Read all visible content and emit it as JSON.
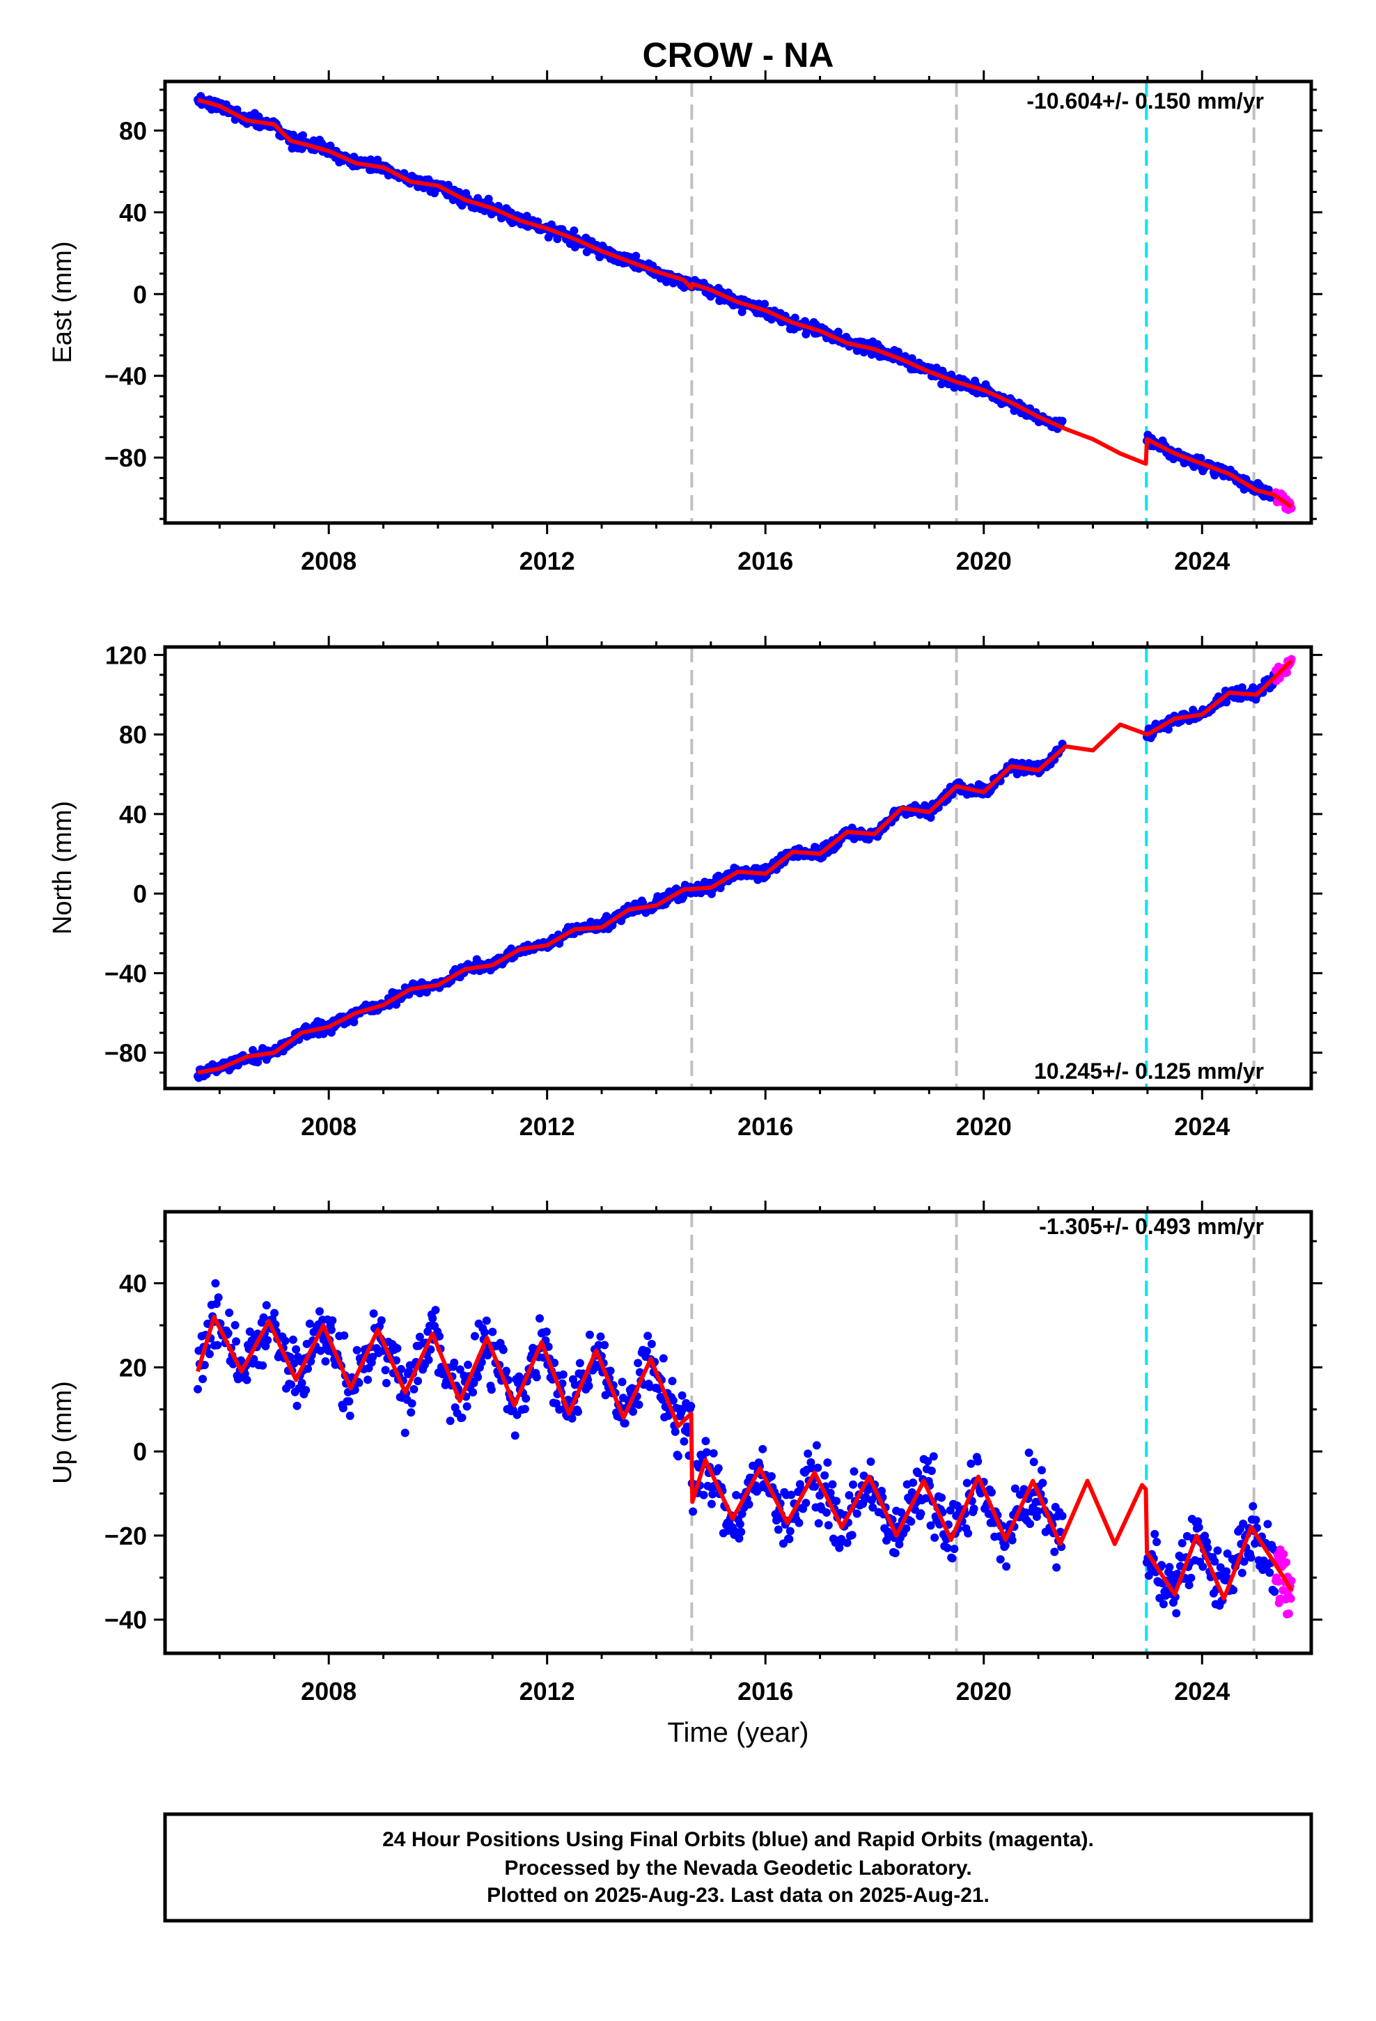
{
  "title": "CROW - NA",
  "colors": {
    "final_orbits": "#0000ff",
    "rapid_orbits": "#ff00ff",
    "model": "#ff0000",
    "equipment_change": "#c0c0c0",
    "earthquake": "#00e5ee"
  },
  "x_axis": {
    "label": "Time (year)",
    "range": [
      2005.0,
      2026.0
    ],
    "ticks": [
      2008,
      2012,
      2016,
      2020,
      2024
    ],
    "tick_labels": [
      "2008",
      "2012",
      "2016",
      "2020",
      "2024"
    ]
  },
  "markers": {
    "gray_dashed": [
      2014.65,
      2019.5,
      2024.95
    ],
    "cyan_dashed": [
      2022.98
    ]
  },
  "chart_data": [
    {
      "type": "scatter",
      "component": "east",
      "ylabel": "East (mm)",
      "ylim": [
        -112,
        104
      ],
      "yticks": [
        -80,
        -40,
        0,
        40,
        80
      ],
      "ytick_labels": [
        "−80",
        "−40",
        "0",
        "40",
        "80"
      ],
      "rate_text": "-10.604+/- 0.150 mm/yr",
      "rate_position": "top-right",
      "final_data_range": [
        2005.6,
        2025.35
      ],
      "rapid_data_range": [
        2025.35,
        2025.64
      ],
      "model": {
        "x": [
          2005.6,
          2006.0,
          2006.5,
          2007.0,
          2007.3,
          2007.6,
          2008.0,
          2008.5,
          2009.0,
          2009.5,
          2010.0,
          2010.5,
          2011.0,
          2011.5,
          2012.0,
          2012.5,
          2013.0,
          2013.5,
          2014.0,
          2014.5,
          2014.64,
          2014.66,
          2015.0,
          2015.5,
          2016.0,
          2016.5,
          2017.0,
          2017.5,
          2018.0,
          2018.5,
          2019.0,
          2019.5,
          2020.0,
          2020.5,
          2021.0,
          2021.5,
          2022.0,
          2022.5,
          2022.97,
          2022.99,
          2023.5,
          2024.0,
          2024.5,
          2025.0,
          2025.3,
          2025.64
        ],
        "y": [
          95,
          92,
          85,
          83,
          75,
          73,
          70,
          64,
          62,
          55,
          53,
          46,
          42,
          36,
          32,
          27,
          21,
          16,
          11,
          7,
          3,
          5,
          2,
          -4,
          -8,
          -14,
          -18,
          -24,
          -27,
          -32,
          -38,
          -43,
          -47,
          -53,
          -60,
          -66,
          -71,
          -78,
          -83,
          -71,
          -78,
          -83,
          -88,
          -96,
          -98,
          -104
        ]
      }
    },
    {
      "type": "scatter",
      "component": "north",
      "ylabel": "North (mm)",
      "ylim": [
        -98,
        124
      ],
      "yticks": [
        -80,
        -40,
        0,
        40,
        80,
        120
      ],
      "ytick_labels": [
        "−80",
        "−40",
        "0",
        "40",
        "80",
        "120"
      ],
      "rate_text": "10.245+/- 0.125 mm/yr",
      "rate_position": "bottom-right",
      "final_data_range": [
        2005.6,
        2025.35
      ],
      "rapid_data_range": [
        2025.35,
        2025.64
      ],
      "model": {
        "x": [
          2005.6,
          2006.0,
          2006.5,
          2007.0,
          2007.5,
          2008.0,
          2008.5,
          2009.0,
          2009.5,
          2010.0,
          2010.5,
          2011.0,
          2011.5,
          2012.0,
          2012.5,
          2013.0,
          2013.5,
          2014.0,
          2014.5,
          2015.0,
          2015.5,
          2016.0,
          2016.5,
          2017.0,
          2017.5,
          2018.0,
          2018.5,
          2019.0,
          2019.5,
          2020.0,
          2020.5,
          2021.0,
          2021.5,
          2022.0,
          2022.5,
          2023.0,
          2023.5,
          2024.0,
          2024.5,
          2025.0,
          2025.64
        ],
        "y": [
          -90,
          -88,
          -82,
          -80,
          -70,
          -67,
          -60,
          -56,
          -48,
          -46,
          -38,
          -36,
          -28,
          -26,
          -18,
          -17,
          -8,
          -6,
          2,
          3,
          11,
          10,
          21,
          20,
          31,
          30,
          43,
          41,
          54,
          51,
          64,
          62,
          74,
          72,
          85,
          80,
          88,
          90,
          101,
          100,
          117
        ]
      }
    },
    {
      "type": "scatter",
      "component": "up",
      "ylabel": "Up (mm)",
      "ylim": [
        -48,
        57
      ],
      "yticks": [
        -40,
        -20,
        0,
        20,
        40
      ],
      "ytick_labels": [
        "−40",
        "−20",
        "0",
        "20",
        "40"
      ],
      "rate_text": "-1.305+/- 0.493 mm/yr",
      "rate_position": "top-right",
      "final_data_range": [
        2005.6,
        2025.35
      ],
      "rapid_data_range": [
        2025.35,
        2025.64
      ],
      "model": {
        "x": [
          2005.6,
          2005.9,
          2006.4,
          2006.9,
          2007.4,
          2007.9,
          2008.4,
          2008.9,
          2009.4,
          2009.9,
          2010.4,
          2010.9,
          2011.4,
          2011.9,
          2012.4,
          2012.9,
          2013.4,
          2013.9,
          2014.4,
          2014.64,
          2014.66,
          2014.9,
          2015.4,
          2015.9,
          2016.4,
          2016.9,
          2017.4,
          2017.9,
          2018.4,
          2018.9,
          2019.4,
          2019.9,
          2020.4,
          2020.9,
          2021.4,
          2021.9,
          2022.4,
          2022.9,
          2022.97,
          2022.99,
          2023.5,
          2023.9,
          2024.4,
          2024.9,
          2025.4,
          2025.64
        ],
        "y": [
          19,
          32,
          19,
          31,
          17,
          30,
          15,
          29,
          14,
          28,
          12,
          27,
          11,
          26,
          9,
          24,
          8,
          22,
          6,
          9,
          -12,
          -2,
          -16,
          -4,
          -17,
          -5,
          -18,
          -6,
          -20,
          -7,
          -21,
          -6,
          -21,
          -7,
          -22,
          -7,
          -22,
          -8,
          -9,
          -24,
          -34,
          -20,
          -35,
          -18,
          -28,
          -33
        ]
      }
    }
  ],
  "footer": {
    "line1": "24 Hour Positions Using Final Orbits (blue) and Rapid Orbits (magenta).",
    "line2": "Processed by the Nevada Geodetic Laboratory.",
    "line3": "Plotted on 2025-Aug-23. Last data on 2025-Aug-21."
  }
}
